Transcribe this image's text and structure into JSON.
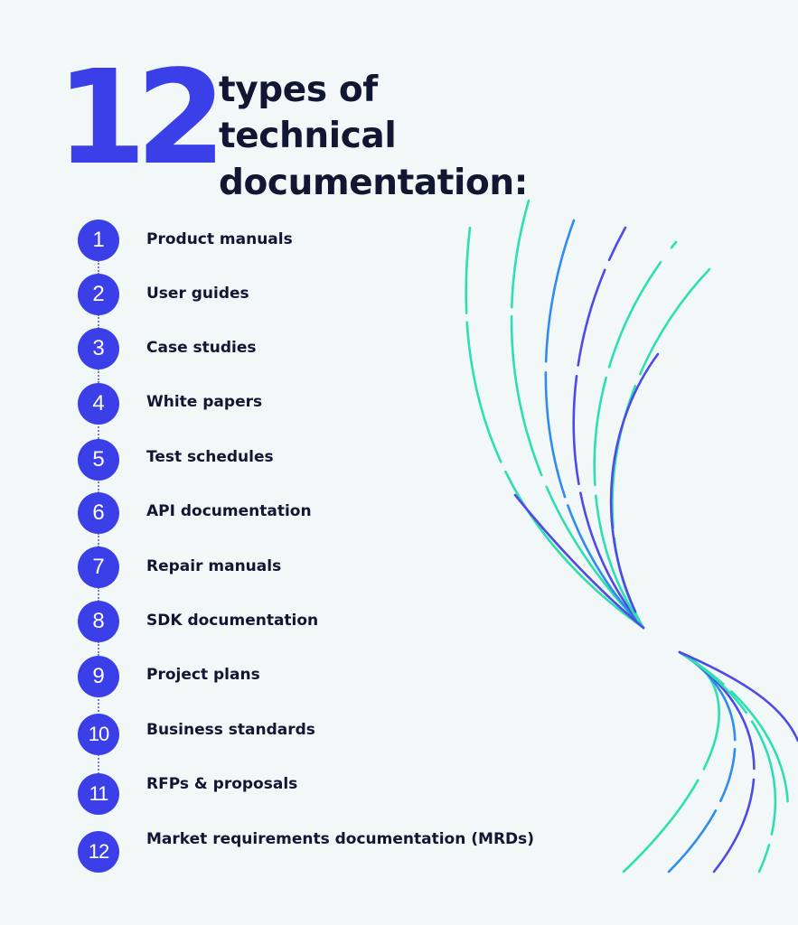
{
  "headline": {
    "number": "12",
    "text_line_1": "types of technical",
    "text_line_2": "documentation:"
  },
  "items": [
    {
      "number": "1",
      "label": "Product manuals"
    },
    {
      "number": "2",
      "label": "User guides"
    },
    {
      "number": "3",
      "label": "Case studies"
    },
    {
      "number": "4",
      "label": "White papers"
    },
    {
      "number": "5",
      "label": "Test schedules"
    },
    {
      "number": "6",
      "label": "API documentation"
    },
    {
      "number": "7",
      "label": "Repair manuals"
    },
    {
      "number": "8",
      "label": "SDK documentation"
    },
    {
      "number": "9",
      "label": "Project plans"
    },
    {
      "number": "10",
      "label": "Business standards"
    },
    {
      "number": "11",
      "label": "RFPs & proposals"
    },
    {
      "number": "12",
      "label": "Market requirements documentation (MRDs)"
    }
  ],
  "colors": {
    "background": "#f2f7f8",
    "accent_blue": "#3b3fe8",
    "text_dark": "#111733",
    "line_teal": "#2ee0b0",
    "line_blue": "#2f8cf0",
    "line_indigo": "#4e4ae6"
  }
}
